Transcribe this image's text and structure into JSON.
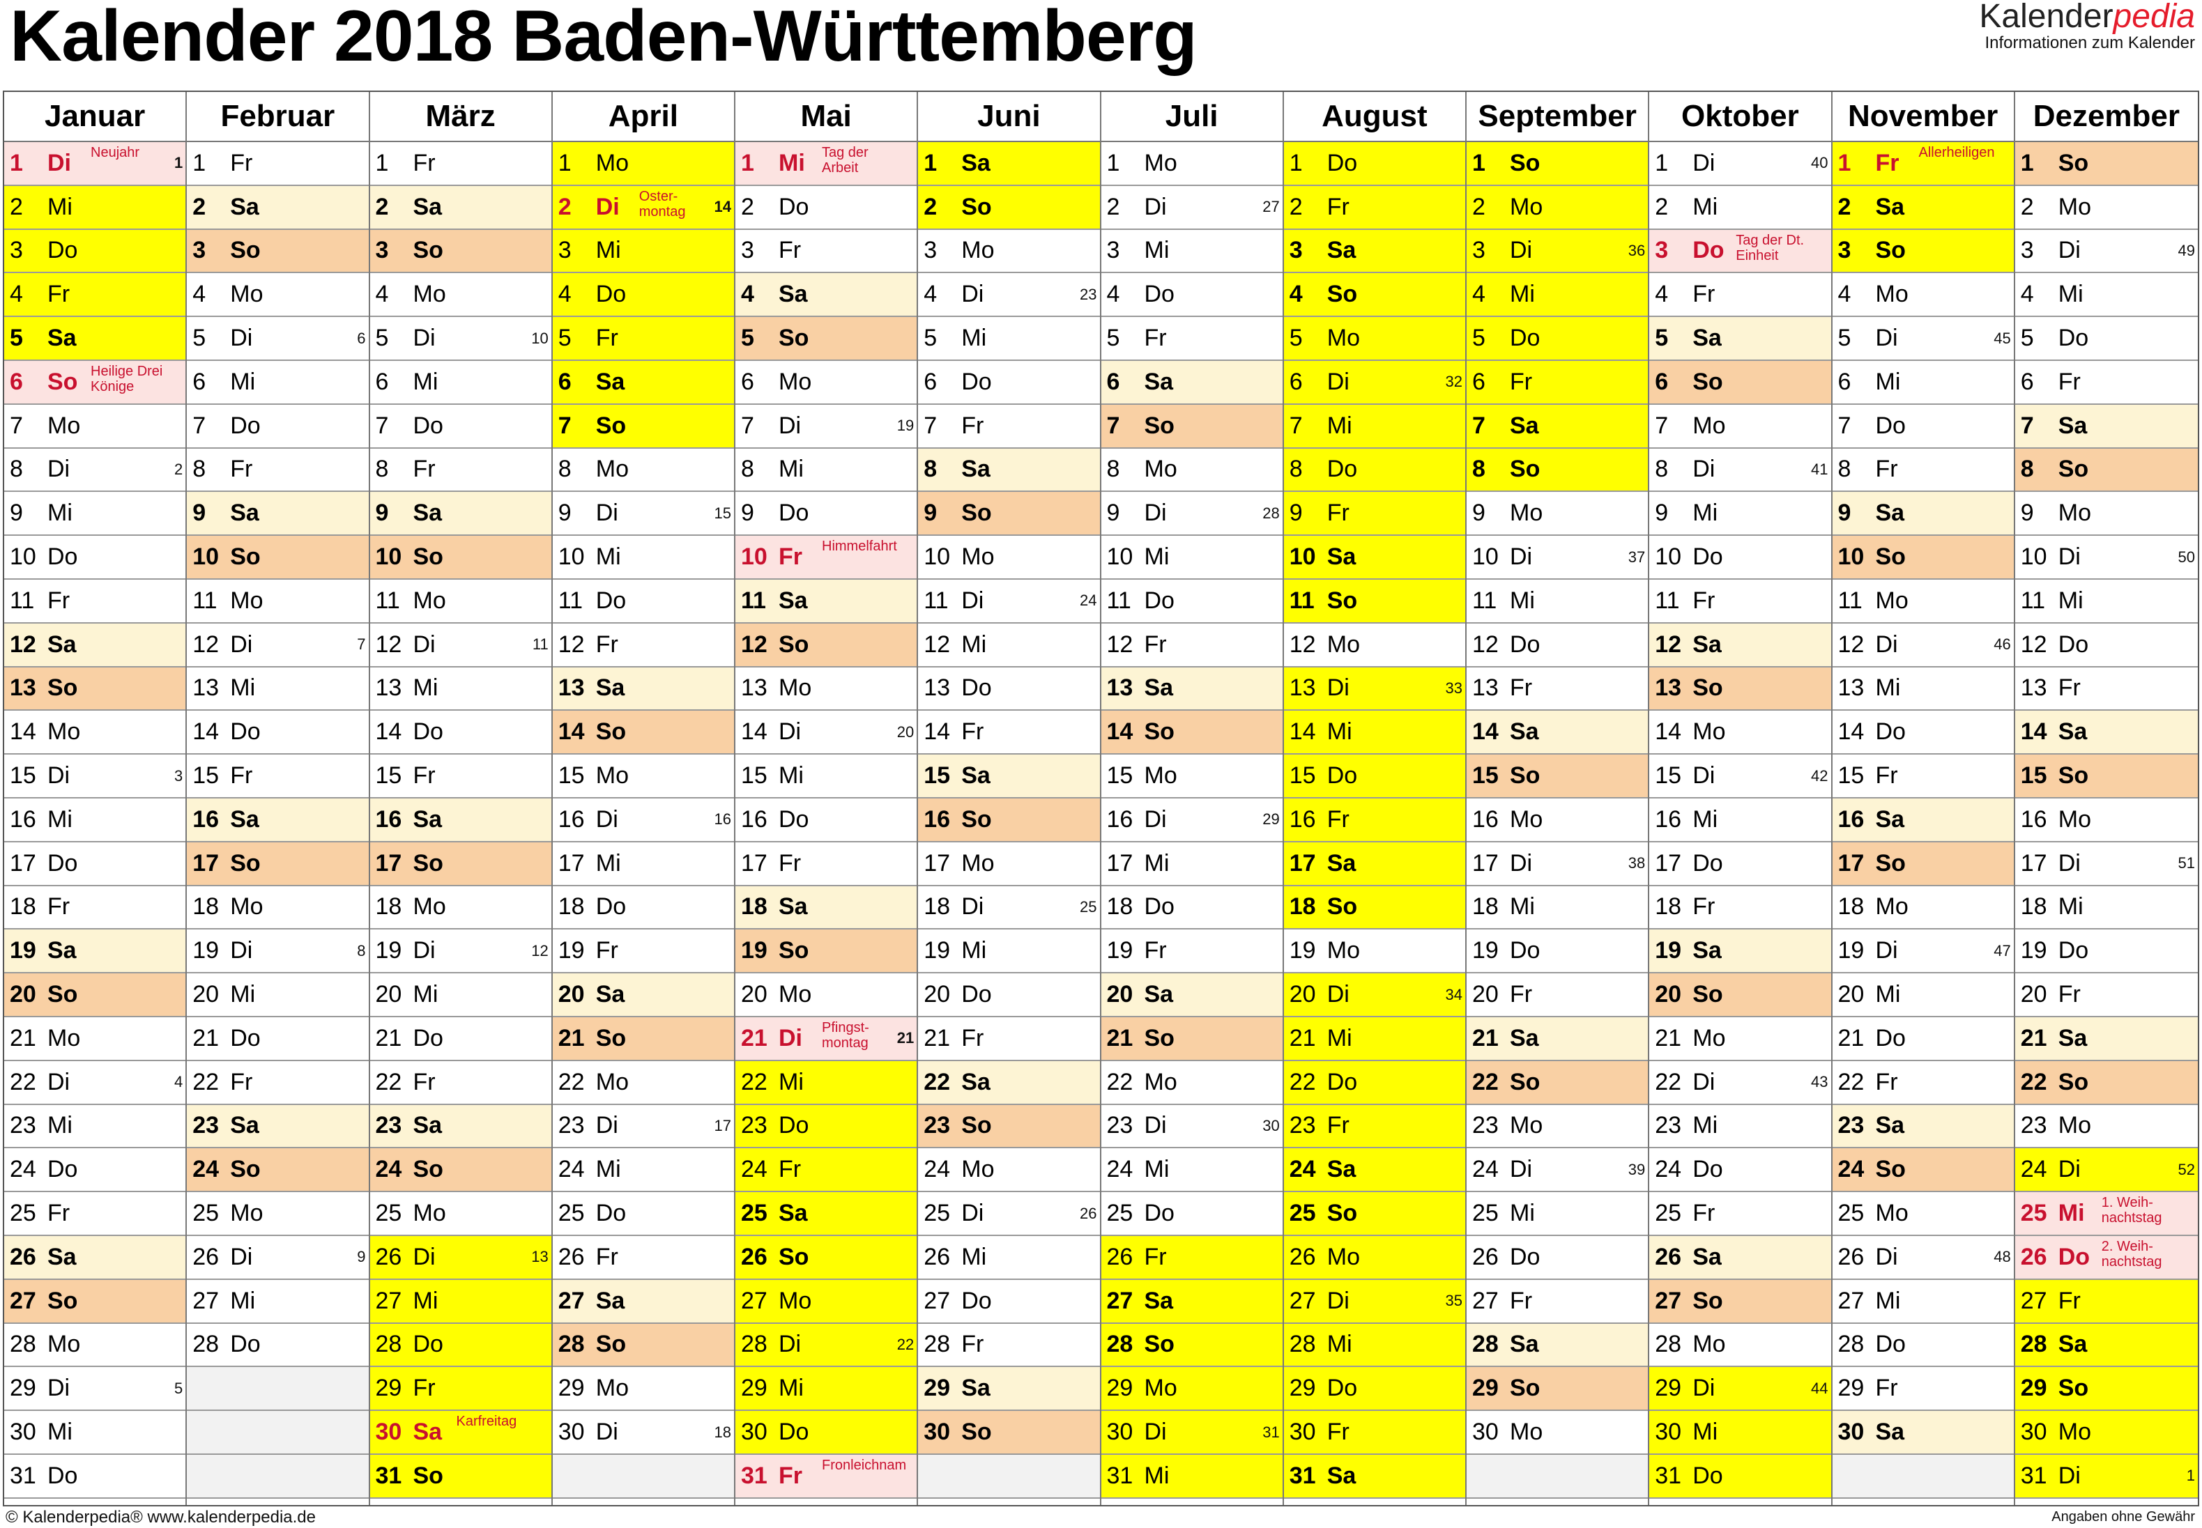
{
  "header": {
    "title": "Kalender 2018 Baden-Württemberg",
    "brand_main": "Kalender",
    "brand_accent": "pedia",
    "brand_sub": "Informationen zum Kalender"
  },
  "footer": {
    "left": "© Kalenderpedia®   www.kalenderpedia.de",
    "right": "Angaben ohne Gewähr"
  },
  "colors": {
    "saturday": "#fdf4d4",
    "sunday": "#f9d0a4",
    "holiday": "#fce3e1",
    "vacation": "#ffff00",
    "holiday_text": "#c8102e"
  },
  "months": [
    {
      "name": "Januar",
      "first": 1,
      "days": 31,
      "vac": [
        2,
        3,
        4,
        5
      ],
      "hol": {
        "1": "Neujahr",
        "6": "Heilige Drei Könige"
      },
      "kw": {
        "1": "1",
        "8": "2",
        "15": "3",
        "22": "4",
        "29": "5"
      }
    },
    {
      "name": "Februar",
      "first": 4,
      "days": 28,
      "vac": [],
      "hol": {},
      "kw": {
        "5": "6",
        "12": "7",
        "19": "8",
        "26": "9"
      }
    },
    {
      "name": "März",
      "first": 4,
      "days": 31,
      "vac": [
        26,
        27,
        28,
        29,
        30,
        31
      ],
      "hol": {
        "30": "Karfreitag"
      },
      "kw": {
        "5": "10",
        "12": "11",
        "19": "12",
        "26": "13"
      }
    },
    {
      "name": "April",
      "first": 0,
      "days": 30,
      "vac": [
        1,
        2,
        3,
        4,
        5,
        6,
        7
      ],
      "hol": {
        "2": "Oster-\nmontag"
      },
      "kw": {
        "2": "14",
        "9": "15",
        "16": "16",
        "23": "17",
        "30": "18"
      }
    },
    {
      "name": "Mai",
      "first": 2,
      "days": 31,
      "vac": [
        22,
        23,
        24,
        25,
        26,
        27,
        28,
        29,
        30
      ],
      "hol": {
        "1": "Tag der\nArbeit",
        "10": "Himmelfahrt",
        "21": "Pfingst-\nmontag",
        "31": "Fronleichnam"
      },
      "kw": {
        "7": "19",
        "14": "20",
        "21": "21",
        "28": "22"
      }
    },
    {
      "name": "Juni",
      "first": 5,
      "days": 30,
      "vac": [
        1,
        2
      ],
      "hol": {},
      "kw": {
        "4": "23",
        "11": "24",
        "18": "25",
        "25": "26"
      }
    },
    {
      "name": "Juli",
      "first": 0,
      "days": 31,
      "vac": [
        26,
        27,
        28,
        29,
        30,
        31
      ],
      "hol": {},
      "kw": {
        "2": "27",
        "9": "28",
        "16": "29",
        "23": "30",
        "30": "31"
      }
    },
    {
      "name": "August",
      "first": 3,
      "days": 31,
      "vac": [
        1,
        2,
        3,
        4,
        5,
        6,
        7,
        8,
        9,
        10,
        11,
        13,
        14,
        15,
        16,
        17,
        18,
        20,
        21,
        22,
        23,
        24,
        25,
        26,
        27,
        28,
        29,
        30,
        31
      ],
      "hol": {},
      "kw": {
        "6": "32",
        "13": "33",
        "20": "34",
        "27": "35"
      }
    },
    {
      "name": "September",
      "first": 6,
      "days": 30,
      "vac": [
        1,
        2,
        3,
        4,
        5,
        6,
        7,
        8
      ],
      "hol": {},
      "kw": {
        "3": "36",
        "10": "37",
        "17": "38",
        "24": "39"
      }
    },
    {
      "name": "Oktober",
      "first": 1,
      "days": 31,
      "vac": [
        29,
        30,
        31
      ],
      "hol": {
        "3": "Tag der Dt.\nEinheit"
      },
      "kw": {
        "1": "40",
        "8": "41",
        "15": "42",
        "22": "43",
        "29": "44"
      }
    },
    {
      "name": "November",
      "first": 4,
      "days": 30,
      "vac": [
        1,
        2,
        3
      ],
      "hol": {
        "1": "Allerheiligen"
      },
      "kw": {
        "5": "45",
        "12": "46",
        "19": "47",
        "26": "48"
      }
    },
    {
      "name": "Dezember",
      "first": 6,
      "days": 31,
      "vac": [
        24,
        27,
        28,
        29,
        30,
        31
      ],
      "hol": {
        "25": "1. Weih-\nnachtstag",
        "26": "2. Weih-\nnachtstag"
      },
      "kw": {
        "3": "49",
        "10": "50",
        "17": "51",
        "24": "52",
        "31": "1"
      }
    }
  ],
  "weekday_abbr": [
    "Mo",
    "Di",
    "Mi",
    "Do",
    "Fr",
    "Sa",
    "So"
  ]
}
